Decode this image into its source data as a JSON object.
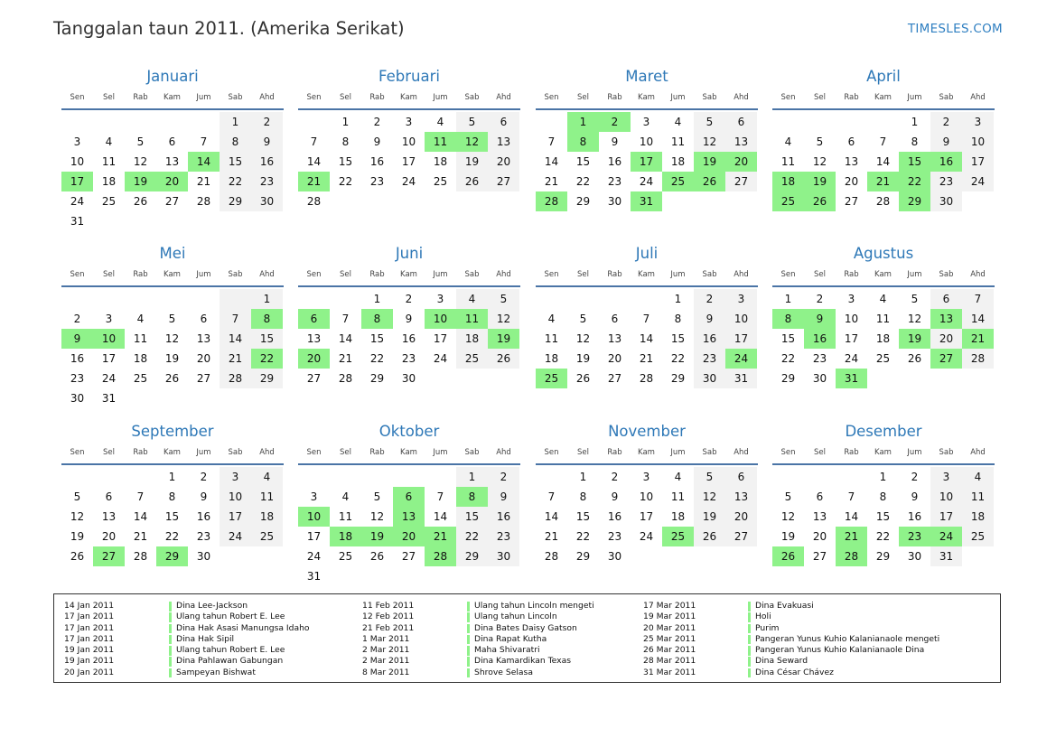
{
  "title": "Tanggalan taun 2011. (Amerika Serikat)",
  "brand": "TIMESLES.COM",
  "weekdays": [
    "Sen",
    "Sel",
    "Rab",
    "Kam",
    "Jum",
    "Sab",
    "Ahd"
  ],
  "colors": {
    "holiday": "#8ff28a",
    "weekend": "#f2f2f2",
    "month_name": "#2e78b7",
    "rule": "#4a74a6"
  },
  "months": [
    {
      "name": "Januari",
      "offset": 5,
      "days": 31,
      "holidays": [
        14,
        17,
        19,
        20
      ]
    },
    {
      "name": "Februari",
      "offset": 1,
      "days": 28,
      "holidays": [
        11,
        12,
        21
      ]
    },
    {
      "name": "Maret",
      "offset": 1,
      "days": 31,
      "holidays": [
        1,
        2,
        8,
        17,
        19,
        20,
        25,
        26,
        28,
        31
      ]
    },
    {
      "name": "April",
      "offset": 4,
      "days": 30,
      "holidays": [
        15,
        16,
        18,
        19,
        21,
        22,
        25,
        26,
        29
      ]
    },
    {
      "name": "Mei",
      "offset": 6,
      "days": 31,
      "holidays": [
        8,
        9,
        10,
        22
      ]
    },
    {
      "name": "Juni",
      "offset": 2,
      "days": 30,
      "holidays": [
        6,
        8,
        10,
        11,
        19,
        20
      ]
    },
    {
      "name": "Juli",
      "offset": 4,
      "days": 31,
      "holidays": [
        24,
        25
      ]
    },
    {
      "name": "Agustus",
      "offset": 0,
      "days": 31,
      "holidays": [
        8,
        9,
        13,
        16,
        19,
        21,
        27,
        31
      ]
    },
    {
      "name": "September",
      "offset": 3,
      "days": 30,
      "holidays": [
        27,
        29
      ]
    },
    {
      "name": "Oktober",
      "offset": 5,
      "days": 31,
      "holidays": [
        6,
        8,
        10,
        13,
        18,
        19,
        20,
        21,
        28
      ]
    },
    {
      "name": "November",
      "offset": 1,
      "days": 30,
      "holidays": [
        25
      ]
    },
    {
      "name": "Desember",
      "offset": 3,
      "days": 31,
      "holidays": [
        21,
        23,
        24,
        26,
        28
      ]
    }
  ],
  "legend": [
    [
      {
        "date": "14 Jan 2011",
        "name": "Dina Lee-Jackson"
      },
      {
        "date": "17 Jan 2011",
        "name": "Ulang tahun Robert E. Lee"
      },
      {
        "date": "17 Jan 2011",
        "name": "Dina Hak Asasi Manungsa Idaho"
      },
      {
        "date": "17 Jan 2011",
        "name": "Dina Hak Sipil"
      },
      {
        "date": "19 Jan 2011",
        "name": "Ulang tahun Robert E. Lee"
      },
      {
        "date": "19 Jan 2011",
        "name": "Dina Pahlawan Gabungan"
      },
      {
        "date": "20 Jan 2011",
        "name": "Sampeyan Bishwat"
      }
    ],
    [
      {
        "date": "11 Feb 2011",
        "name": "Ulang tahun Lincoln mengeti"
      },
      {
        "date": "12 Feb 2011",
        "name": "Ulang tahun Lincoln"
      },
      {
        "date": "21 Feb 2011",
        "name": "Dina Bates Daisy Gatson"
      },
      {
        "date": "1 Mar 2011",
        "name": "Dina Rapat Kutha"
      },
      {
        "date": "2 Mar 2011",
        "name": "Maha Shivaratri"
      },
      {
        "date": "2 Mar 2011",
        "name": "Dina Kamardikan Texas"
      },
      {
        "date": "8 Mar 2011",
        "name": "Shrove Selasa"
      }
    ],
    [
      {
        "date": "17 Mar 2011",
        "name": "Dina Evakuasi"
      },
      {
        "date": "19 Mar 2011",
        "name": "Holi"
      },
      {
        "date": "20 Mar 2011",
        "name": "Purim"
      },
      {
        "date": "25 Mar 2011",
        "name": "Pangeran Yunus Kuhio Kalanianaole mengeti"
      },
      {
        "date": "26 Mar 2011",
        "name": "Pangeran Yunus Kuhio Kalanianaole Dina"
      },
      {
        "date": "28 Mar 2011",
        "name": "Dina Seward"
      },
      {
        "date": "31 Mar 2011",
        "name": "Dina César Chávez"
      }
    ]
  ]
}
